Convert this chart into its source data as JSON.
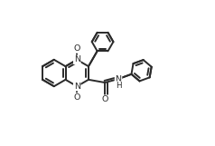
{
  "bg_color": "#ffffff",
  "line_color": "#2a2a2a",
  "line_width": 1.4,
  "font_size": 6.8,
  "fig_width": 2.38,
  "fig_height": 1.61,
  "dpi": 100,
  "xlim": [
    0,
    10
  ],
  "ylim": [
    0,
    6.8
  ]
}
